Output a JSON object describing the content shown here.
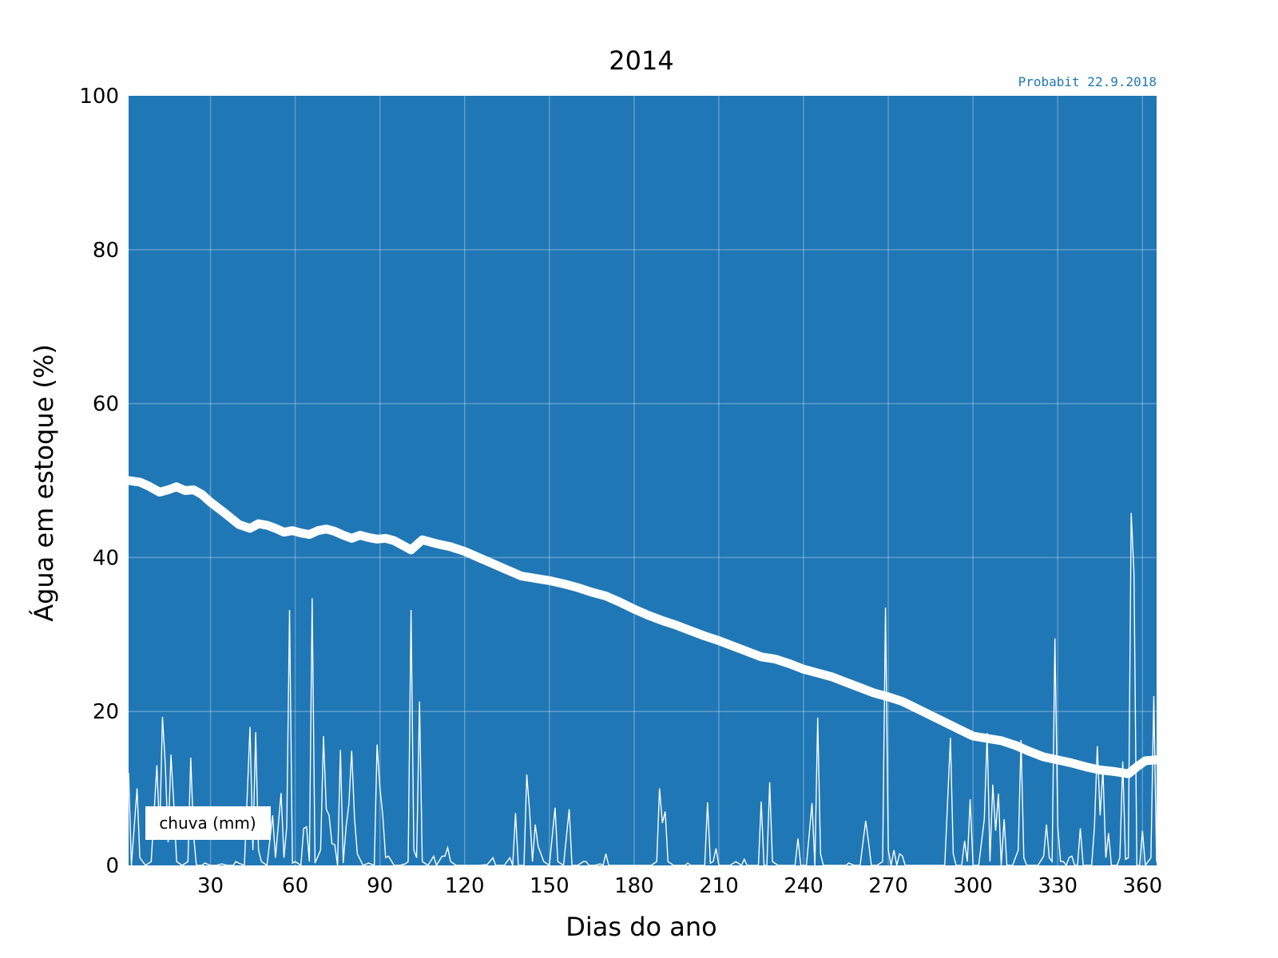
{
  "chart_data": {
    "type": "line",
    "title": "2014",
    "credit": "Probabit 22.9.2018",
    "xlabel": "Dias do ano",
    "ylabel": "Água em estoque (%)",
    "xlim": [
      1,
      365
    ],
    "ylim": [
      0,
      100
    ],
    "x_ticks": [
      30,
      60,
      90,
      120,
      150,
      180,
      210,
      240,
      270,
      300,
      330,
      360
    ],
    "y_ticks": [
      0,
      20,
      40,
      60,
      80,
      100
    ],
    "grid": true,
    "legend": {
      "entry": "chuva (mm)",
      "placement": "bottom-left"
    },
    "colors": {
      "background": "#2077b5",
      "series": "#ffffff",
      "credit": "#1f77b4"
    },
    "series": [
      {
        "key": "storage",
        "points": [
          [
            1,
            50
          ],
          [
            5,
            49.8
          ],
          [
            8,
            49.3
          ],
          [
            12,
            48.5
          ],
          [
            15,
            48.8
          ],
          [
            18,
            49.2
          ],
          [
            21,
            48.7
          ],
          [
            24,
            48.8
          ],
          [
            27,
            48.2
          ],
          [
            30,
            47.2
          ],
          [
            35,
            45.8
          ],
          [
            40,
            44.3
          ],
          [
            44,
            43.8
          ],
          [
            47,
            44.4
          ],
          [
            50,
            44.2
          ],
          [
            53,
            43.8
          ],
          [
            56,
            43.3
          ],
          [
            59,
            43.5
          ],
          [
            62,
            43.2
          ],
          [
            65,
            43
          ],
          [
            68,
            43.5
          ],
          [
            71,
            43.7
          ],
          [
            74,
            43.4
          ],
          [
            77,
            42.9
          ],
          [
            80,
            42.5
          ],
          [
            83,
            42.9
          ],
          [
            86,
            42.6
          ],
          [
            89,
            42.4
          ],
          [
            92,
            42.5
          ],
          [
            95,
            42.2
          ],
          [
            98,
            41.6
          ],
          [
            101,
            41
          ],
          [
            105,
            42.3
          ],
          [
            110,
            41.8
          ],
          [
            115,
            41.4
          ],
          [
            120,
            40.8
          ],
          [
            125,
            40
          ],
          [
            130,
            39.2
          ],
          [
            135,
            38.4
          ],
          [
            140,
            37.6
          ],
          [
            145,
            37.3
          ],
          [
            150,
            37
          ],
          [
            155,
            36.6
          ],
          [
            160,
            36.1
          ],
          [
            165,
            35.5
          ],
          [
            170,
            35
          ],
          [
            175,
            34.2
          ],
          [
            180,
            33.3
          ],
          [
            185,
            32.5
          ],
          [
            190,
            31.8
          ],
          [
            195,
            31.2
          ],
          [
            200,
            30.5
          ],
          [
            205,
            29.8
          ],
          [
            210,
            29.2
          ],
          [
            215,
            28.5
          ],
          [
            220,
            27.8
          ],
          [
            225,
            27.1
          ],
          [
            230,
            26.8
          ],
          [
            235,
            26.2
          ],
          [
            240,
            25.5
          ],
          [
            245,
            25
          ],
          [
            250,
            24.5
          ],
          [
            255,
            23.8
          ],
          [
            260,
            23.1
          ],
          [
            265,
            22.4
          ],
          [
            270,
            21.9
          ],
          [
            275,
            21.3
          ],
          [
            280,
            20.4
          ],
          [
            285,
            19.5
          ],
          [
            290,
            18.6
          ],
          [
            295,
            17.7
          ],
          [
            300,
            16.8
          ],
          [
            305,
            16.5
          ],
          [
            310,
            16.2
          ],
          [
            315,
            15.6
          ],
          [
            320,
            14.8
          ],
          [
            325,
            14.1
          ],
          [
            330,
            13.7
          ],
          [
            335,
            13.3
          ],
          [
            340,
            12.8
          ],
          [
            345,
            12.4
          ],
          [
            350,
            12.2
          ],
          [
            355,
            11.9
          ],
          [
            358,
            12.8
          ],
          [
            361,
            13.6
          ],
          [
            365,
            13.7
          ]
        ]
      },
      {
        "key": "chuva",
        "points": [
          [
            1,
            12
          ],
          [
            2,
            0
          ],
          [
            4,
            10
          ],
          [
            5,
            1
          ],
          [
            7,
            0
          ],
          [
            9,
            0.5
          ],
          [
            11,
            13
          ],
          [
            12,
            4
          ],
          [
            13,
            19.3
          ],
          [
            14,
            13
          ],
          [
            15,
            3
          ],
          [
            16,
            14.4
          ],
          [
            17,
            8
          ],
          [
            18,
            0.5
          ],
          [
            20,
            0
          ],
          [
            22,
            0.5
          ],
          [
            23,
            14
          ],
          [
            24,
            4
          ],
          [
            25,
            0
          ],
          [
            27,
            0
          ],
          [
            28,
            0.3
          ],
          [
            30,
            0
          ],
          [
            32,
            0
          ],
          [
            34,
            0.2
          ],
          [
            36,
            0
          ],
          [
            38,
            0
          ],
          [
            39,
            0.5
          ],
          [
            40,
            0.3
          ],
          [
            42,
            0
          ],
          [
            44,
            18
          ],
          [
            45,
            2
          ],
          [
            46,
            17.3
          ],
          [
            47,
            2
          ],
          [
            48,
            0.5
          ],
          [
            50,
            0
          ],
          [
            52,
            6.5
          ],
          [
            53,
            1
          ],
          [
            55,
            9.4
          ],
          [
            56,
            1
          ],
          [
            57,
            5
          ],
          [
            58,
            33.2
          ],
          [
            59,
            0.3
          ],
          [
            60,
            0.5
          ],
          [
            62,
            0
          ],
          [
            63,
            4.8
          ],
          [
            64,
            5
          ],
          [
            65,
            0.5
          ],
          [
            66,
            34.7
          ],
          [
            67,
            0.3
          ],
          [
            69,
            2
          ],
          [
            70,
            16.8
          ],
          [
            71,
            7.3
          ],
          [
            72,
            6.5
          ],
          [
            73,
            2.8
          ],
          [
            74,
            2.7
          ],
          [
            75,
            0
          ],
          [
            76,
            15
          ],
          [
            77,
            0.3
          ],
          [
            78,
            5
          ],
          [
            79,
            8
          ],
          [
            80,
            14.9
          ],
          [
            81,
            6
          ],
          [
            82,
            1.5
          ],
          [
            84,
            0
          ],
          [
            86,
            0.3
          ],
          [
            88,
            0
          ],
          [
            89,
            15.7
          ],
          [
            90,
            10
          ],
          [
            91,
            6.5
          ],
          [
            92,
            1
          ],
          [
            93,
            1.2
          ],
          [
            95,
            0
          ],
          [
            97,
            0
          ],
          [
            99,
            0.2
          ],
          [
            100,
            0.5
          ],
          [
            101,
            33.2
          ],
          [
            102,
            2
          ],
          [
            103,
            1
          ],
          [
            104,
            21.3
          ],
          [
            105,
            0.5
          ],
          [
            107,
            0
          ],
          [
            109,
            1.2
          ],
          [
            110,
            0
          ],
          [
            112,
            1.2
          ],
          [
            113,
            1.2
          ],
          [
            114,
            2.3
          ],
          [
            115,
            0.5
          ],
          [
            117,
            0
          ],
          [
            120,
            0
          ],
          [
            125,
            0
          ],
          [
            128,
            0.1
          ],
          [
            130,
            1
          ],
          [
            131,
            0
          ],
          [
            134,
            0
          ],
          [
            136,
            1
          ],
          [
            137,
            0
          ],
          [
            138,
            6.8
          ],
          [
            139,
            0
          ],
          [
            141,
            0
          ],
          [
            142,
            11.8
          ],
          [
            143,
            7
          ],
          [
            144,
            0.5
          ],
          [
            145,
            5.3
          ],
          [
            146,
            2.5
          ],
          [
            147,
            1.5
          ],
          [
            148,
            0.5
          ],
          [
            150,
            0
          ],
          [
            152,
            7.5
          ],
          [
            153,
            0.5
          ],
          [
            155,
            0
          ],
          [
            157,
            7.3
          ],
          [
            158,
            0
          ],
          [
            160,
            0
          ],
          [
            162,
            0.5
          ],
          [
            163,
            0.5
          ],
          [
            164,
            0
          ],
          [
            166,
            0
          ],
          [
            168,
            0.2
          ],
          [
            169,
            0
          ],
          [
            170,
            1.5
          ],
          [
            171,
            0
          ],
          [
            175,
            0
          ],
          [
            180,
            0
          ],
          [
            183,
            0
          ],
          [
            186,
            0
          ],
          [
            188,
            0.5
          ],
          [
            189,
            10
          ],
          [
            190,
            5.5
          ],
          [
            191,
            7
          ],
          [
            192,
            0.5
          ],
          [
            194,
            0
          ],
          [
            198,
            0
          ],
          [
            199,
            0.3
          ],
          [
            200,
            0
          ],
          [
            205,
            0
          ],
          [
            206,
            8.2
          ],
          [
            207,
            0.3
          ],
          [
            208,
            0.5
          ],
          [
            209,
            2.2
          ],
          [
            210,
            0
          ],
          [
            212,
            0
          ],
          [
            214,
            0
          ],
          [
            216,
            0.5
          ],
          [
            218,
            0
          ],
          [
            219,
            0.8
          ],
          [
            220,
            0
          ],
          [
            224,
            0
          ],
          [
            225,
            8.3
          ],
          [
            226,
            0
          ],
          [
            227,
            0
          ],
          [
            228,
            10.8
          ],
          [
            229,
            0.5
          ],
          [
            231,
            0
          ],
          [
            235,
            0
          ],
          [
            237,
            0
          ],
          [
            238,
            3.5
          ],
          [
            239,
            0
          ],
          [
            241,
            0
          ],
          [
            243,
            8.1
          ],
          [
            244,
            0
          ],
          [
            245,
            19.2
          ],
          [
            246,
            1.5
          ],
          [
            247,
            0
          ],
          [
            250,
            0
          ],
          [
            255,
            0
          ],
          [
            256,
            0.3
          ],
          [
            258,
            0
          ],
          [
            260,
            0
          ],
          [
            262,
            5.8
          ],
          [
            263,
            3
          ],
          [
            264,
            0
          ],
          [
            266,
            0
          ],
          [
            268,
            0.5
          ],
          [
            269,
            33.5
          ],
          [
            270,
            2
          ],
          [
            271,
            0
          ],
          [
            272,
            2
          ],
          [
            273,
            0
          ],
          [
            274,
            1.5
          ],
          [
            275,
            1.2
          ],
          [
            276,
            0
          ],
          [
            280,
            0
          ],
          [
            285,
            0
          ],
          [
            290,
            0
          ],
          [
            292,
            16.6
          ],
          [
            293,
            1.5
          ],
          [
            294,
            0
          ],
          [
            296,
            0
          ],
          [
            297,
            3.2
          ],
          [
            298,
            0.5
          ],
          [
            299,
            8.6
          ],
          [
            300,
            0
          ],
          [
            302,
            0
          ],
          [
            304,
            6
          ],
          [
            305,
            17.2
          ],
          [
            306,
            0.5
          ],
          [
            307,
            10.5
          ],
          [
            308,
            4.5
          ],
          [
            309,
            9.3
          ],
          [
            310,
            0
          ],
          [
            311,
            6
          ],
          [
            312,
            0
          ],
          [
            314,
            0
          ],
          [
            316,
            2
          ],
          [
            317,
            16.3
          ],
          [
            318,
            1
          ],
          [
            319,
            0
          ],
          [
            321,
            0
          ],
          [
            323,
            0
          ],
          [
            325,
            1.2
          ],
          [
            326,
            5.3
          ],
          [
            327,
            1
          ],
          [
            328,
            0.5
          ],
          [
            329,
            29.5
          ],
          [
            330,
            5
          ],
          [
            331,
            0.5
          ],
          [
            332,
            0.5
          ],
          [
            333,
            0
          ],
          [
            334,
            1
          ],
          [
            335,
            1.2
          ],
          [
            336,
            0
          ],
          [
            337,
            0
          ],
          [
            338,
            4.8
          ],
          [
            339,
            0
          ],
          [
            341,
            0
          ],
          [
            342,
            0
          ],
          [
            343,
            5
          ],
          [
            344,
            15.5
          ],
          [
            345,
            6.5
          ],
          [
            346,
            12.5
          ],
          [
            347,
            1
          ],
          [
            348,
            4.2
          ],
          [
            349,
            0
          ],
          [
            351,
            0
          ],
          [
            352,
            1
          ],
          [
            353,
            13.5
          ],
          [
            354,
            0.8
          ],
          [
            355,
            1
          ],
          [
            356,
            45.8
          ],
          [
            357,
            38
          ],
          [
            358,
            0
          ],
          [
            359,
            0
          ],
          [
            360,
            4.5
          ],
          [
            361,
            0
          ],
          [
            362,
            0.5
          ],
          [
            363,
            1
          ],
          [
            364,
            22
          ],
          [
            365,
            0.5
          ]
        ]
      }
    ]
  }
}
